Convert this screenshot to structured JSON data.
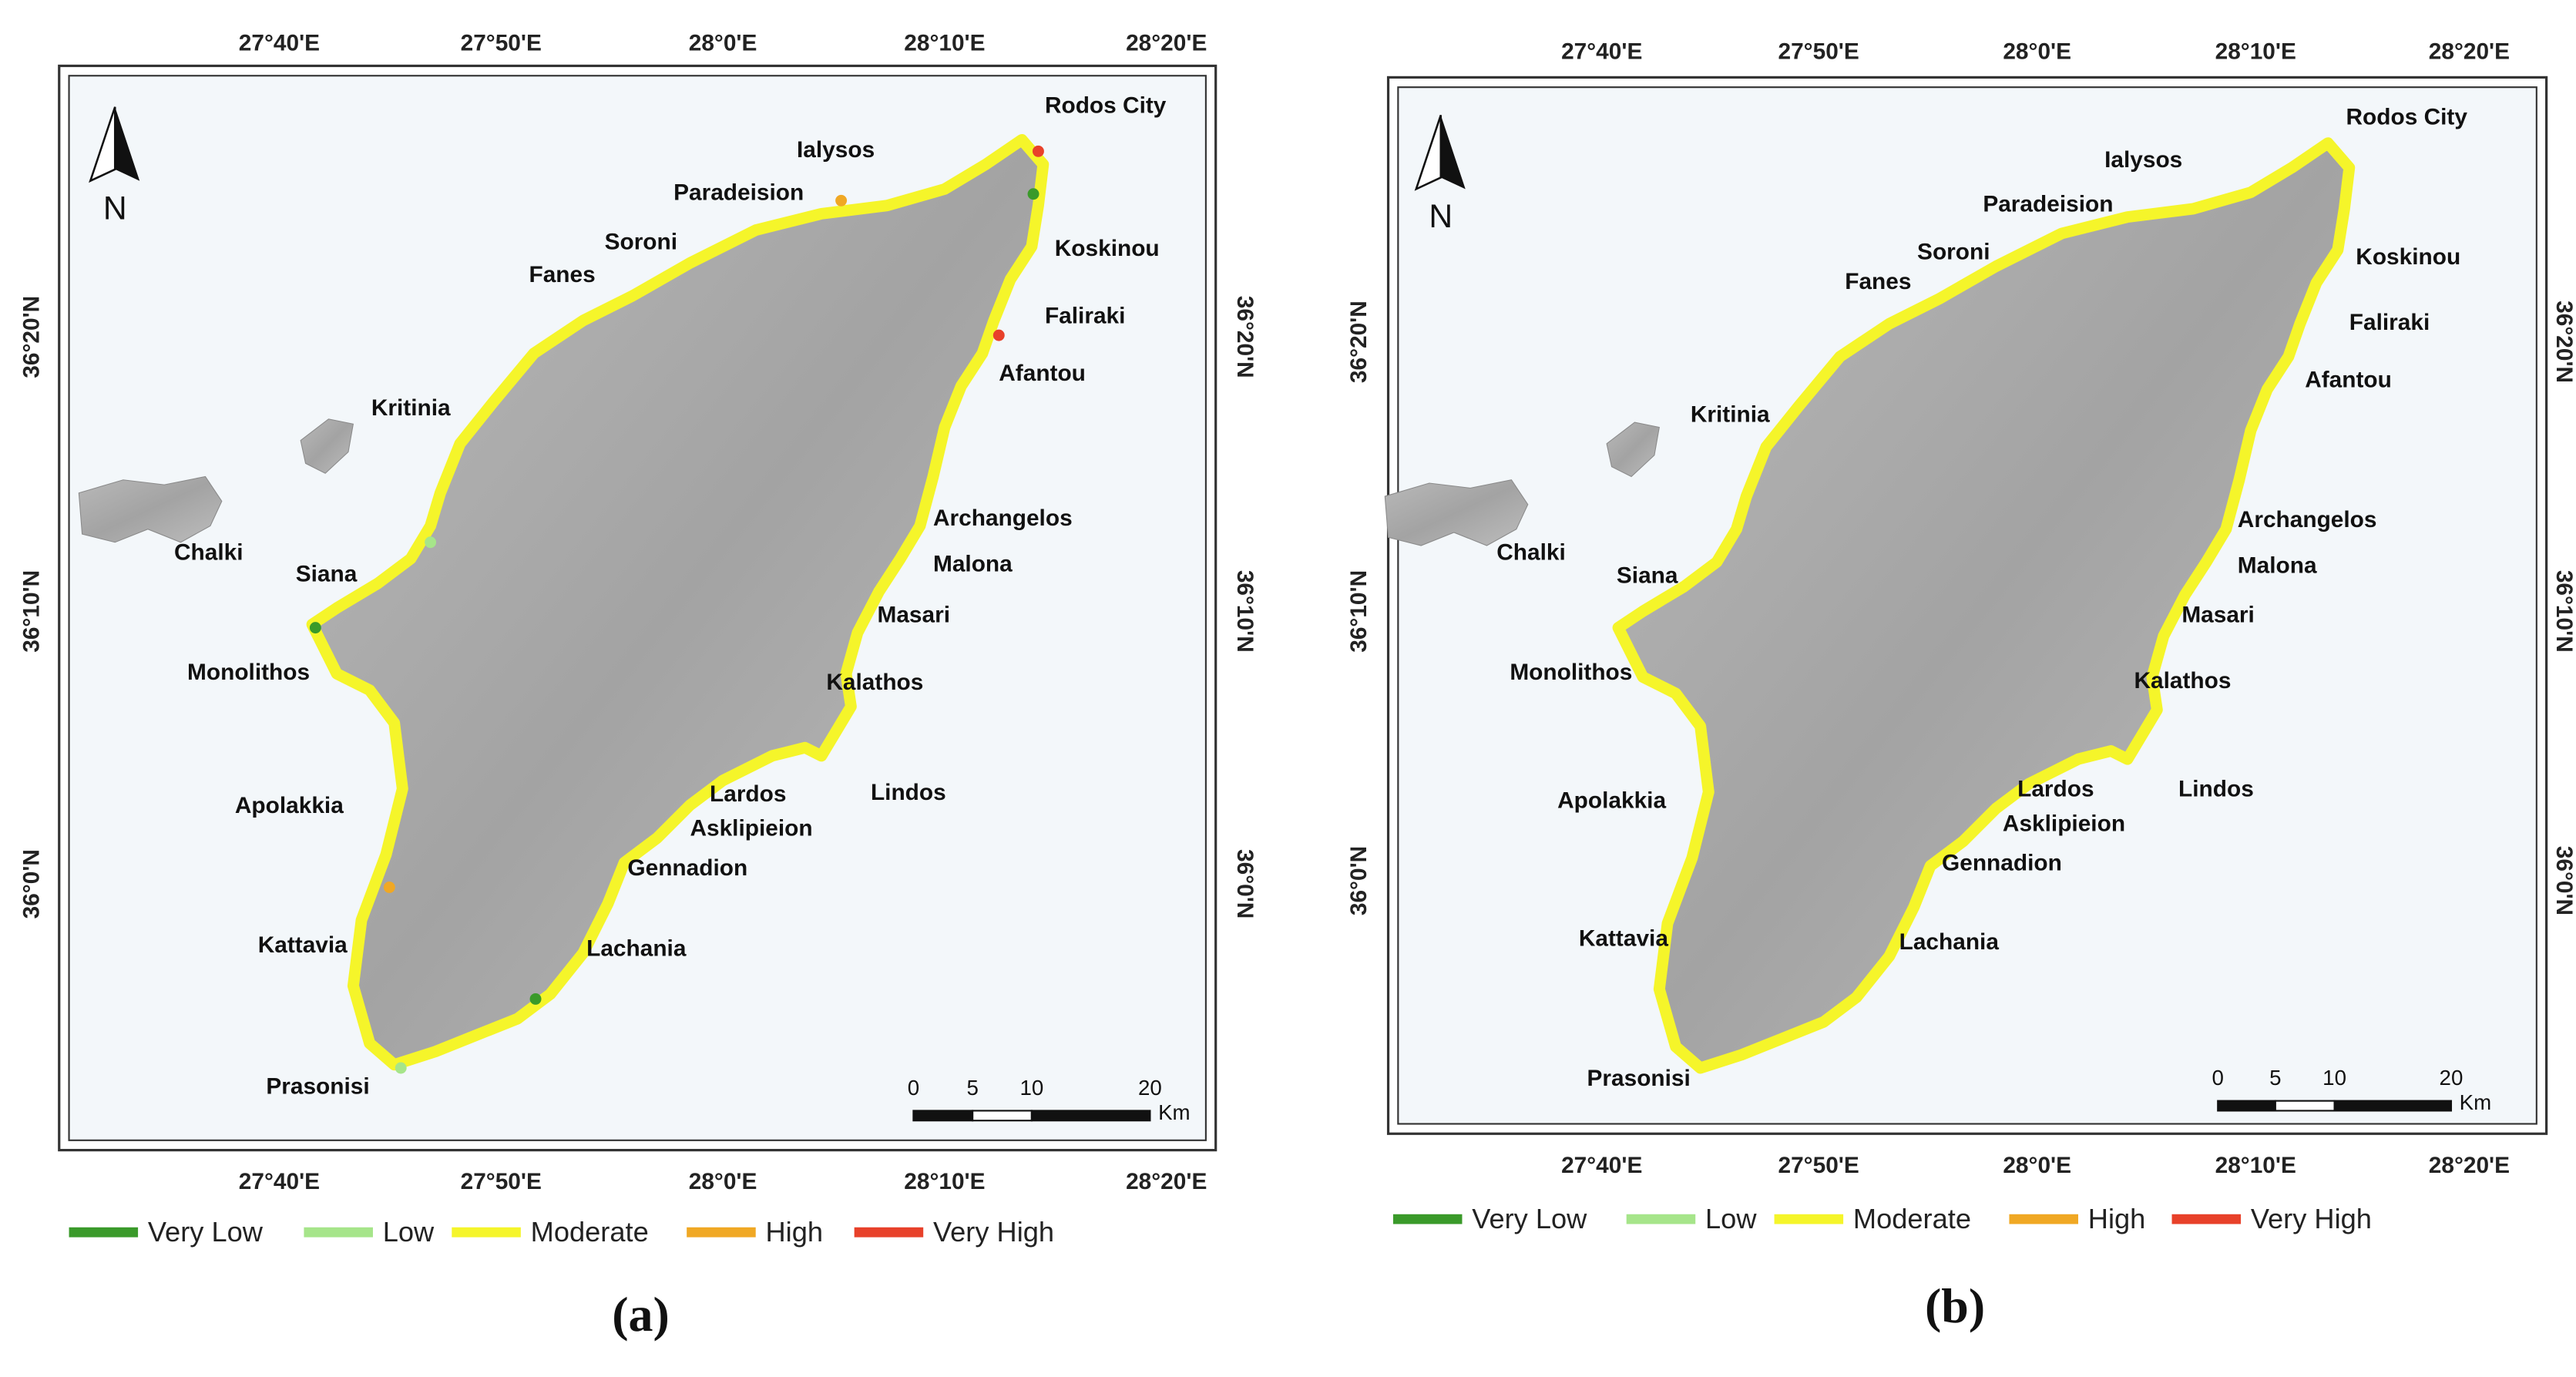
{
  "panels": [
    {
      "caption": "(a)",
      "lon_labels": [
        "27°40'E",
        "27°50'E",
        "28°0'E",
        "28°10'E",
        "28°20'E"
      ],
      "lat_labels": [
        "36°20'N",
        "36°10'N",
        "36°0'N"
      ],
      "north": "N",
      "places": [
        "Rodos City",
        "Ialysos",
        "Paradeision",
        "Soroni",
        "Fanes",
        "Koskinou",
        "Faliraki",
        "Afantou",
        "Kritinia",
        "Chalki",
        "Archangelos",
        "Malona",
        "Siana",
        "Masari",
        "Monolithos",
        "Kalathos",
        "Lindos",
        "Apolakkia",
        "Lardos",
        "Asklipieion",
        "Gennadion",
        "Kattavia",
        "Lachania",
        "Prasonisi"
      ],
      "scale": {
        "ticks": [
          "0",
          "5",
          "10",
          "20"
        ],
        "unit": "Km"
      },
      "legend": [
        {
          "label": "Very Low",
          "color": "#3a9a2a"
        },
        {
          "label": "Low",
          "color": "#a6e58a"
        },
        {
          "label": "Moderate",
          "color": "#f5f52a"
        },
        {
          "label": "High",
          "color": "#f0a824"
        },
        {
          "label": "Very High",
          "color": "#e8412a"
        }
      ]
    },
    {
      "caption": "(b)",
      "lon_labels": [
        "27°40'E",
        "27°50'E",
        "28°0'E",
        "28°10'E",
        "28°20'E"
      ],
      "lat_labels": [
        "36°20'N",
        "36°10'N",
        "36°0'N"
      ],
      "north": "N",
      "places": [
        "Rodos City",
        "Ialysos",
        "Paradeision",
        "Soroni",
        "Fanes",
        "Koskinou",
        "Faliraki",
        "Afantou",
        "Kritinia",
        "Chalki",
        "Archangelos",
        "Malona",
        "Siana",
        "Masari",
        "Monolithos",
        "Kalathos",
        "Lindos",
        "Apolakkia",
        "Lardos",
        "Asklipieion",
        "Gennadion",
        "Kattavia",
        "Lachania",
        "Prasonisi"
      ],
      "scale": {
        "ticks": [
          "0",
          "5",
          "10",
          "20"
        ],
        "unit": "Km"
      },
      "legend": [
        {
          "label": "Very Low",
          "color": "#3a9a2a"
        },
        {
          "label": "Low",
          "color": "#a6e58a"
        },
        {
          "label": "Moderate",
          "color": "#f5f52a"
        },
        {
          "label": "High",
          "color": "#f0a824"
        },
        {
          "label": "Very High",
          "color": "#e8412a"
        }
      ]
    }
  ]
}
